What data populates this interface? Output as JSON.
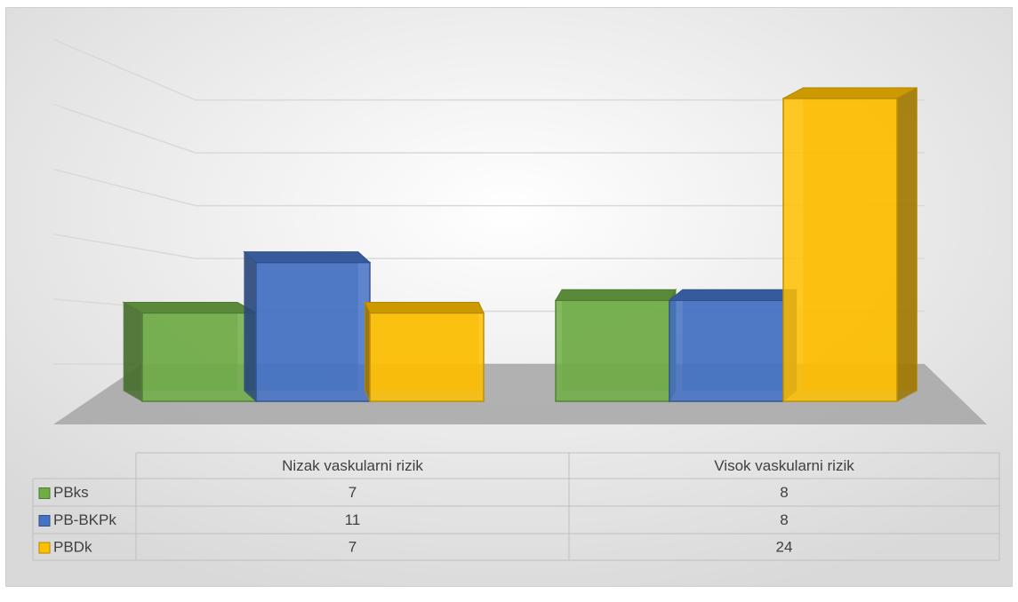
{
  "chart_data": {
    "type": "bar3d",
    "categories": [
      "Nizak vaskularni rizik",
      "Visok vaskularni rizik"
    ],
    "series": [
      {
        "name": "PBks",
        "color": "#70ad47",
        "values": [
          7,
          8
        ]
      },
      {
        "name": "PB-BKPk",
        "color": "#4472c4",
        "values": [
          11,
          8
        ]
      },
      {
        "name": "PBDk",
        "color": "#ffc000",
        "values": [
          7,
          24
        ]
      }
    ],
    "ylim": [
      0,
      28
    ],
    "yticks": [
      0,
      5,
      10,
      15,
      20,
      25
    ],
    "grid": true,
    "data_table": true
  }
}
